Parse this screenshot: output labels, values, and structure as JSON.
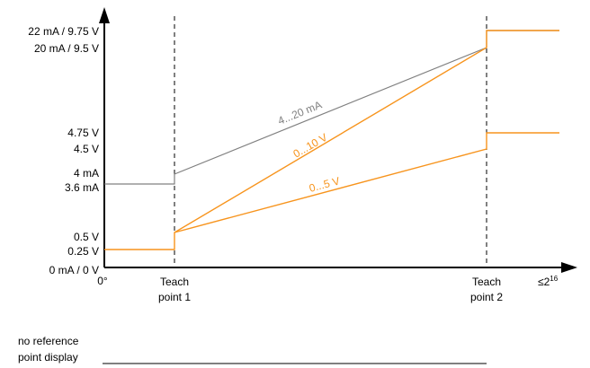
{
  "diagram": {
    "y_labels": {
      "l22": "22 mA / 9.75 V",
      "l20": "20 mA / 9.5 V",
      "l475": "4.75 V",
      "l45": "4.5 V",
      "l4ma": "4 mA",
      "l36": "3.6 mA",
      "l05": "0.5 V",
      "l025": "0.25 V",
      "l0": "0 mA / 0 V"
    },
    "x_labels": {
      "origin": "0°",
      "tp1_line1": "Teach",
      "tp1_line2": "point 1",
      "tp2_line1": "Teach",
      "tp2_line2": "point 2",
      "max": "≤2",
      "max_sup": "16"
    },
    "series_labels": {
      "ma": "4...20 mA",
      "v10": "0...10 V",
      "v5": "0...5 V"
    },
    "footer": {
      "line1": "no reference",
      "line2": "point display"
    },
    "colors": {
      "gray": "#808080",
      "orange": "#f7941d",
      "axis": "#000000"
    }
  }
}
